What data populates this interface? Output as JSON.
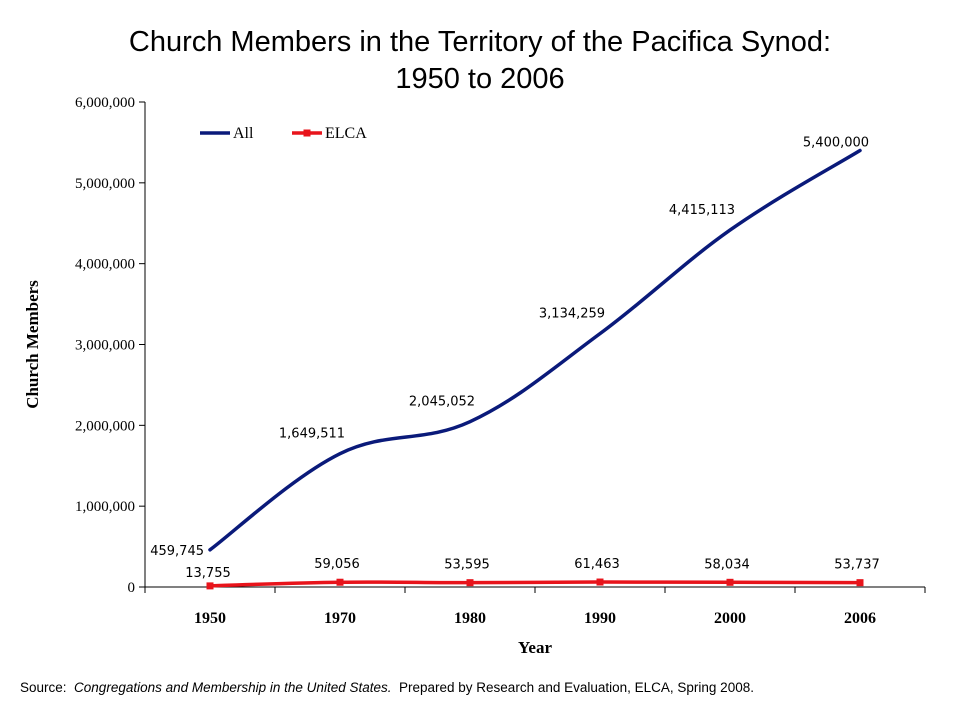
{
  "chart_data": {
    "type": "line",
    "title_line1": "Church Members in the Territory of the Pacifica Synod:",
    "title_line2": "1950 to 2006",
    "xlabel": "Year",
    "ylabel": "Church Members",
    "x_ticks": [
      "1950",
      "1970",
      "1980",
      "1990",
      "2000",
      "2006"
    ],
    "ylim": [
      0,
      6000000
    ],
    "y_ticks": [
      0,
      1000000,
      2000000,
      3000000,
      4000000,
      5000000,
      6000000
    ],
    "y_tick_labels": [
      "0",
      "1,000,000",
      "2,000,000",
      "3,000,000",
      "4,000,000",
      "5,000,000",
      "6,000,000"
    ],
    "legend_position": "top-left",
    "series": [
      {
        "name": "All",
        "color": "#0a1a7a",
        "marker": "none",
        "values": [
          459745,
          1649511,
          2045052,
          3134259,
          4415113,
          5400000
        ],
        "data_labels": [
          "459,745",
          "1,649,511",
          "2,045,052",
          "3,134,259",
          "4,415,113",
          "5,400,000"
        ]
      },
      {
        "name": "ELCA",
        "color": "#e8141b",
        "marker": "square",
        "values": [
          13755,
          59056,
          53595,
          61463,
          58034,
          53737
        ],
        "data_labels": [
          "13,755",
          "59,056",
          "53,595",
          "61,463",
          "58,034",
          "53,737"
        ]
      }
    ]
  },
  "footer": {
    "source_prefix": "Source:",
    "source_title": "Congregations and Membership in the United States.",
    "source_suffix": "Prepared by Research and Evaluation, ELCA, Spring 2008."
  }
}
